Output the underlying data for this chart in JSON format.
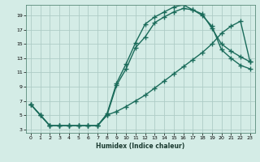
{
  "xlabel": "Humidex (Indice chaleur)",
  "bg_color": "#d4ece6",
  "grid_color": "#aeccc6",
  "line_color": "#1a6b5a",
  "xlim": [
    -0.5,
    23.5
  ],
  "ylim": [
    2.5,
    20.5
  ],
  "xticks": [
    0,
    1,
    2,
    3,
    4,
    5,
    6,
    7,
    8,
    9,
    10,
    11,
    12,
    13,
    14,
    15,
    16,
    17,
    18,
    19,
    20,
    21,
    22,
    23
  ],
  "yticks": [
    3,
    5,
    7,
    9,
    11,
    13,
    15,
    17,
    19
  ],
  "curve1_x": [
    0,
    1,
    2,
    3,
    4,
    5,
    6,
    7,
    8,
    9,
    10,
    11,
    12,
    13,
    14,
    15,
    16,
    17,
    18,
    19,
    20,
    21,
    22,
    23
  ],
  "curve1_y": [
    6.5,
    5.0,
    3.5,
    3.5,
    3.5,
    3.5,
    3.5,
    3.5,
    5.0,
    9.2,
    11.5,
    14.5,
    16.0,
    18.0,
    18.8,
    19.5,
    20.0,
    19.8,
    19.2,
    17.2,
    15.0,
    14.0,
    13.2,
    12.5
  ],
  "curve2_x": [
    0,
    1,
    2,
    3,
    4,
    5,
    6,
    7,
    8,
    9,
    10,
    11,
    12,
    13,
    14,
    15,
    16,
    17,
    18,
    19,
    20,
    21,
    22,
    23
  ],
  "curve2_y": [
    6.5,
    5.0,
    3.5,
    3.5,
    3.5,
    3.5,
    3.5,
    3.5,
    5.2,
    9.5,
    12.2,
    15.2,
    17.8,
    18.8,
    19.5,
    20.2,
    20.5,
    19.8,
    19.0,
    17.5,
    14.2,
    13.0,
    12.0,
    11.5
  ],
  "curve3_x": [
    0,
    1,
    2,
    3,
    4,
    5,
    6,
    7,
    8,
    9,
    10,
    11,
    12,
    13,
    14,
    15,
    16,
    17,
    18,
    19,
    20,
    21,
    22,
    23
  ],
  "curve3_y": [
    6.5,
    5.0,
    3.5,
    3.5,
    3.5,
    3.5,
    3.5,
    3.5,
    5.0,
    5.5,
    6.2,
    7.0,
    7.8,
    8.8,
    9.8,
    10.8,
    11.8,
    12.8,
    13.8,
    15.0,
    16.5,
    17.5,
    18.2,
    12.5
  ]
}
